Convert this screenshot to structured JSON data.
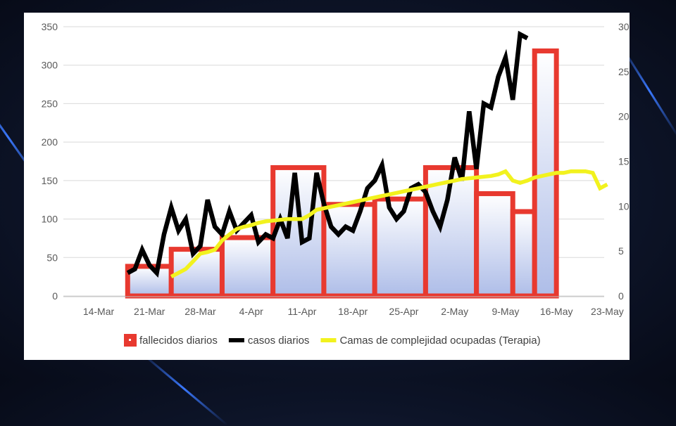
{
  "chart_data": {
    "type": "bar",
    "x_tick_labels": [
      "14-Mar",
      "21-Mar",
      "28-Mar",
      "4-Apr",
      "11-Apr",
      "18-Apr",
      "25-Apr",
      "2-May",
      "9-May",
      "16-May",
      "23-May"
    ],
    "y_left": {
      "range": [
        0,
        350
      ],
      "ticks": [
        "0",
        "50",
        "100",
        "150",
        "200",
        "250",
        "300",
        "350"
      ]
    },
    "y_right": {
      "range": [
        0,
        30
      ],
      "ticks": [
        "0",
        "5",
        "10",
        "15",
        "20",
        "25",
        "30"
      ]
    },
    "grid": true,
    "legend_position": "bottom",
    "series": [
      {
        "name": "fallecidos diarios",
        "type": "bar",
        "axis": "right",
        "color": "#e8392f",
        "bins": [
          {
            "start": "2020-03-18",
            "end": "2020-03-24",
            "value": 3.3
          },
          {
            "start": "2020-03-24",
            "end": "2020-03-31",
            "value": 5.2
          },
          {
            "start": "2020-03-31",
            "end": "2020-04-07",
            "value": 6.5
          },
          {
            "start": "2020-04-07",
            "end": "2020-04-14",
            "value": 14.3
          },
          {
            "start": "2020-04-14",
            "end": "2020-04-21",
            "value": 10.2
          },
          {
            "start": "2020-04-21",
            "end": "2020-04-28",
            "value": 10.8
          },
          {
            "start": "2020-04-28",
            "end": "2020-05-05",
            "value": 14.3
          },
          {
            "start": "2020-05-05",
            "end": "2020-05-10",
            "value": 11.4
          },
          {
            "start": "2020-05-10",
            "end": "2020-05-13",
            "value": 9.4
          },
          {
            "start": "2020-05-13",
            "end": "2020-05-16",
            "value": 27.3
          }
        ]
      },
      {
        "name": "casos diarios",
        "type": "line",
        "axis": "left",
        "color": "#000000",
        "x_start": "2020-03-18",
        "values": [
          30,
          35,
          60,
          40,
          30,
          80,
          115,
          85,
          100,
          55,
          65,
          125,
          90,
          80,
          110,
          85,
          95,
          105,
          70,
          80,
          75,
          100,
          75,
          160,
          70,
          75,
          160,
          120,
          90,
          80,
          90,
          85,
          110,
          140,
          150,
          170,
          115,
          100,
          110,
          140,
          145,
          135,
          110,
          90,
          125,
          180,
          150,
          240,
          165,
          250,
          245,
          285,
          310,
          255,
          340,
          335
        ]
      },
      {
        "name": "Camas de complejidad ocupadas (Terapia)",
        "type": "line",
        "axis": "left",
        "color": "#f2f21e",
        "x_start": "2020-03-24",
        "values": [
          25,
          30,
          35,
          45,
          55,
          57,
          60,
          72,
          80,
          87,
          90,
          92,
          95,
          97,
          98,
          99,
          100,
          100,
          100,
          105,
          112,
          114,
          116,
          118,
          120,
          122,
          124,
          126,
          128,
          130,
          132,
          134,
          136,
          138,
          140,
          142,
          144,
          146,
          148,
          150,
          152,
          153,
          154,
          155,
          156,
          158,
          162,
          150,
          147,
          150,
          154,
          156,
          158,
          160,
          160,
          162,
          162,
          162,
          160,
          140,
          145
        ]
      }
    ]
  }
}
